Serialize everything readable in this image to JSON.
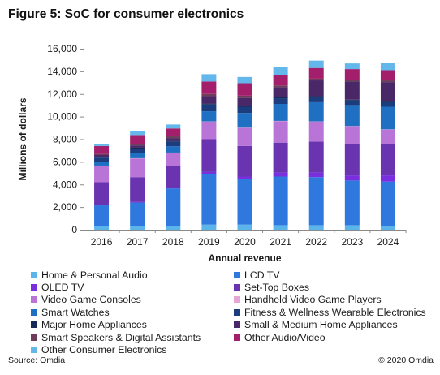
{
  "figure": {
    "title": "Figure 5: SoC for consumer electronics",
    "source": "Source: Omdia",
    "copyright": "© 2020 Omdia"
  },
  "chart_data": {
    "type": "bar",
    "stacked": true,
    "xlabel": "Annual revenue",
    "ylabel": "Millions of dollars",
    "ylim": [
      0,
      16000
    ],
    "yticks": [
      "0",
      "2,000",
      "4,000",
      "6,000",
      "8,000",
      "10,000",
      "12,000",
      "14,000",
      "16,000"
    ],
    "ytick_values": [
      0,
      2000,
      4000,
      6000,
      8000,
      10000,
      12000,
      14000,
      16000
    ],
    "grid": false,
    "legend_position": "bottom",
    "categories": [
      "2016",
      "2017",
      "2018",
      "2019",
      "2020",
      "2021",
      "2022",
      "2023",
      "2024"
    ],
    "series": [
      {
        "name": "Home & Personal Audio",
        "color": "#5bb4ea",
        "values": [
          300,
          300,
          350,
          450,
          450,
          400,
          400,
          400,
          350
        ]
      },
      {
        "name": "LCD TV",
        "color": "#2f78de",
        "values": [
          1850,
          2100,
          3300,
          4500,
          4000,
          4300,
          4250,
          3950,
          3900
        ]
      },
      {
        "name": "OLED TV",
        "color": "#7b2de0",
        "values": [
          50,
          50,
          50,
          150,
          250,
          350,
          400,
          450,
          550
        ]
      },
      {
        "name": "Set-Top Boxes",
        "color": "#6a34b0",
        "values": [
          2000,
          2200,
          1900,
          2900,
          2700,
          2650,
          2750,
          2800,
          2800
        ]
      },
      {
        "name": "Video Game Consoles",
        "color": "#b874d6",
        "values": [
          1450,
          1650,
          1200,
          1550,
          1600,
          1900,
          1750,
          1550,
          1250
        ]
      },
      {
        "name": "Handheld Video Game Players",
        "color": "#e4a7d6",
        "values": [
          20,
          20,
          20,
          20,
          20,
          20,
          20,
          20,
          20
        ]
      },
      {
        "name": "Smart Watches",
        "color": "#1f6fc2",
        "values": [
          350,
          450,
          550,
          900,
          1300,
          1500,
          1700,
          1850,
          2000
        ]
      },
      {
        "name": "Fitness & Wellness Wearable Electronics",
        "color": "#1b3d7e",
        "values": [
          350,
          400,
          400,
          600,
          550,
          500,
          450,
          400,
          400
        ]
      },
      {
        "name": "Major Home Appliances",
        "color": "#162a5a",
        "values": [
          80,
          80,
          80,
          80,
          80,
          80,
          80,
          80,
          80
        ]
      },
      {
        "name": "Small & Medium Home Appliances",
        "color": "#4a2868",
        "values": [
          150,
          200,
          250,
          650,
          700,
          900,
          1400,
          1600,
          1700
        ]
      },
      {
        "name": "Smart Speakers & Digital Assistants",
        "color": "#6f3d5a",
        "values": [
          100,
          120,
          150,
          200,
          200,
          150,
          150,
          150,
          150
        ]
      },
      {
        "name": "Other Audio/Video",
        "color": "#a31f6c",
        "values": [
          700,
          800,
          700,
          1100,
          1100,
          900,
          950,
          950,
          900
        ]
      },
      {
        "name": "Other Consumer Electronics",
        "color": "#63b7ea",
        "values": [
          200,
          350,
          350,
          650,
          550,
          750,
          650,
          500,
          650
        ]
      }
    ]
  }
}
